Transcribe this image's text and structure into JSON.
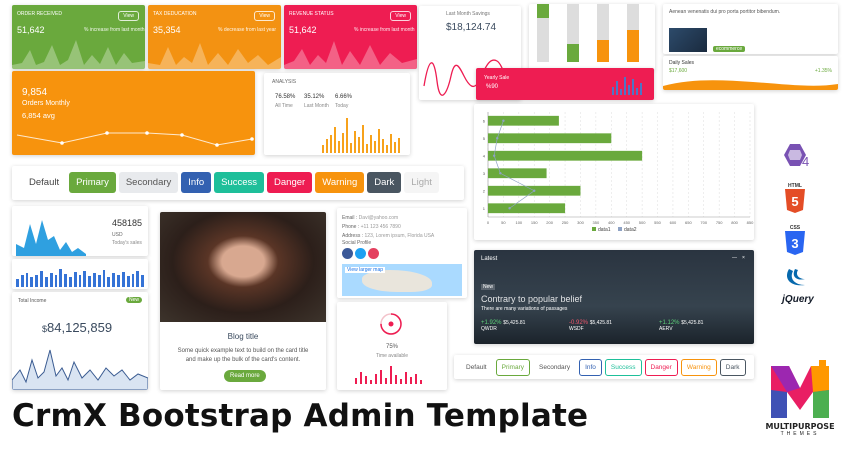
{
  "title": "CrmX Bootstrap Admin Template",
  "tiles": [
    {
      "label": "ORDER RECEIVED",
      "value": "51,642",
      "note": "% increase from last month",
      "button": "View",
      "color": "#6aa93d"
    },
    {
      "label": "TAX DEDUCATION",
      "value": "35,354",
      "note": "% decrease from last year",
      "button": "View",
      "color": "#f39212"
    },
    {
      "label": "REVENUE STATUS",
      "value": "51,642",
      "note": "% increase from last month",
      "button": "View",
      "color": "#ee1d52"
    }
  ],
  "orders_monthly": {
    "value": "9,854",
    "label": "Orders Monthly",
    "avg": "6,854 avg",
    "color": "#f7930d"
  },
  "analysis": {
    "title": "ANALYSIS",
    "stats": [
      {
        "value": "76.58%",
        "label": "All Time"
      },
      {
        "value": "35.12%",
        "label": "Last Month"
      },
      {
        "value": "6.66%",
        "label": "Today"
      }
    ]
  },
  "savings": {
    "label": "Last Month Savings",
    "value": "$18,124.74"
  },
  "yearly": {
    "label": "Yearly Sale",
    "value": "%90"
  },
  "news": {
    "text": "Aenean venenatis dui pro porta portitor bibendum.",
    "badge": "ecommerce"
  },
  "daily_sales": {
    "label": "Daily Sales",
    "value": "$17,600",
    "change": "+1.35%"
  },
  "buttons": [
    "Default",
    "Primary",
    "Secondary",
    "Info",
    "Success",
    "Danger",
    "Warning",
    "Dark",
    "Light"
  ],
  "usd_card": {
    "value": "458185",
    "unit": "USD",
    "note": "Today's sales"
  },
  "income": {
    "label": "Total Income",
    "value": "84,125,859",
    "currency": "$",
    "badge": "New"
  },
  "blog": {
    "title": "Blog title",
    "text": "Some quick example text to build on the card title and make up the bulk of the card's content.",
    "button": "Read more"
  },
  "contact": {
    "rows": [
      {
        "label": "Email :",
        "value": "Davi@yahoo.com"
      },
      {
        "label": "Phone :",
        "value": "+11 123 456 7890"
      },
      {
        "label": "Address :",
        "value": "123, Lorem ipsum, Florida USA"
      }
    ],
    "social_label": "Social Profile",
    "map_button": "View larger map"
  },
  "progress": {
    "value": "75%",
    "label": "Time available"
  },
  "chart_data": {
    "type": "bar",
    "orientation": "horizontal",
    "categories": [
      "1",
      "2",
      "3",
      "4",
      "5",
      "6"
    ],
    "series": [
      {
        "name": "data1",
        "values": [
          230,
          400,
          500,
          190,
          300,
          250
        ],
        "color": "#6aa93d"
      },
      {
        "name": "data2",
        "values": [
          50,
          30,
          20,
          40,
          150,
          70
        ],
        "color": "#8ea2c4"
      }
    ],
    "xlim": [
      0,
      850
    ],
    "xticks": [
      "0",
      "50",
      "100",
      "150",
      "200",
      "250",
      "300",
      "350",
      "400",
      "450",
      "500",
      "550",
      "600",
      "650",
      "700",
      "750",
      "800",
      "850"
    ],
    "legend": "bottom",
    "grid": true
  },
  "latest": {
    "title": "Latest",
    "tag": "New",
    "heading": "Contrary to popular belief",
    "sub": "There are many variations of passages",
    "tickers": [
      {
        "change": "+1.92%",
        "value": "$5,425.81",
        "name": "QWDR",
        "color": "#5ed07a"
      },
      {
        "change": "-0.92%",
        "value": "$5,425.81",
        "name": "WSDF",
        "color": "#f0576c"
      },
      {
        "change": "+1.12%",
        "value": "$5,425.81",
        "name": "AERV",
        "color": "#5ed07a"
      }
    ]
  },
  "logos": [
    "HTML",
    "CSS",
    "jQuery"
  ],
  "brand": {
    "name": "MULTIPURPOSE",
    "sub": "THEMES"
  }
}
